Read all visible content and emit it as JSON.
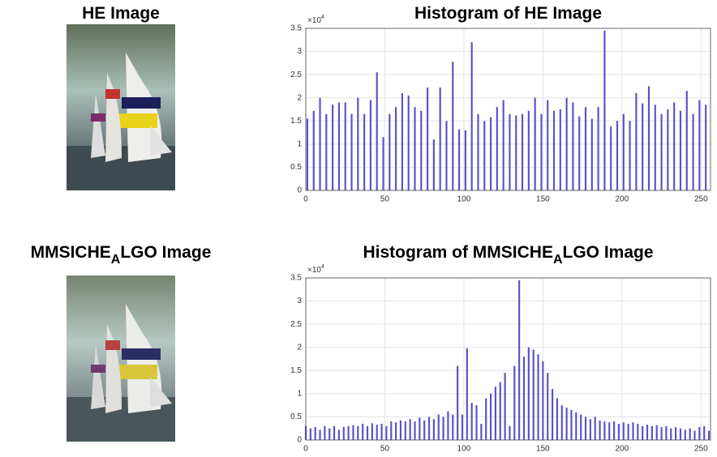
{
  "images": [
    {
      "label": "HE Image"
    },
    {
      "label": "MMSICHE",
      "label_sub": "A",
      "label_tail": "LGO Image"
    }
  ],
  "chart_data": [
    {
      "type": "bar",
      "title": "Histogram of HE Image",
      "y_scale_text": "×10",
      "y_scale_power": "4",
      "color": "#5b50c8",
      "grid": true,
      "xlim": [
        0,
        256
      ],
      "xticks": [
        0,
        50,
        100,
        150,
        200,
        250
      ],
      "ylim": [
        0,
        3.5
      ],
      "yticks": [
        0,
        0.5,
        1,
        1.5,
        2,
        2.5,
        3,
        3.5
      ],
      "x": [
        1,
        5,
        9,
        13,
        17,
        21,
        25,
        29,
        33,
        37,
        41,
        45,
        49,
        53,
        57,
        61,
        65,
        69,
        73,
        77,
        81,
        85,
        89,
        93,
        97,
        101,
        105,
        109,
        113,
        117,
        121,
        125,
        129,
        133,
        137,
        141,
        145,
        149,
        153,
        157,
        161,
        165,
        169,
        173,
        177,
        181,
        185,
        189,
        193,
        197,
        201,
        205,
        209,
        213,
        217,
        221,
        225,
        229,
        233,
        237,
        241,
        245,
        249,
        253
      ],
      "values": [
        1.55,
        1.72,
        2.0,
        1.65,
        1.85,
        1.9,
        1.9,
        1.65,
        2.0,
        1.65,
        1.95,
        2.55,
        1.15,
        1.65,
        1.8,
        2.1,
        2.05,
        1.8,
        1.72,
        2.22,
        1.1,
        2.22,
        1.5,
        2.78,
        1.32,
        1.3,
        3.2,
        1.65,
        1.5,
        1.58,
        1.8,
        1.95,
        1.65,
        1.62,
        1.65,
        1.72,
        2.0,
        1.65,
        1.95,
        1.72,
        1.75,
        2.0,
        1.9,
        1.6,
        1.8,
        1.55,
        1.8,
        3.45,
        1.38,
        1.5,
        1.65,
        1.5,
        2.1,
        1.88,
        2.25,
        1.85,
        1.65,
        1.75,
        1.9,
        1.72,
        2.15,
        1.65,
        1.95,
        1.85
      ]
    },
    {
      "type": "bar",
      "title": "Histogram of MMSICHE",
      "title_sub": "A",
      "title_tail": "LGO Image",
      "y_scale_text": "×10",
      "y_scale_power": "4",
      "color": "#5b50c8",
      "grid": true,
      "xlim": [
        0,
        256
      ],
      "xticks": [
        0,
        50,
        100,
        150,
        200,
        250
      ],
      "ylim": [
        0,
        3.5
      ],
      "yticks": [
        0,
        0.5,
        1,
        1.5,
        2,
        2.5,
        3,
        3.5
      ],
      "x": [
        0,
        3,
        6,
        9,
        12,
        15,
        18,
        21,
        24,
        27,
        30,
        33,
        36,
        39,
        42,
        45,
        48,
        51,
        54,
        57,
        60,
        63,
        66,
        69,
        72,
        75,
        78,
        81,
        84,
        87,
        90,
        93,
        96,
        99,
        102,
        105,
        108,
        111,
        114,
        117,
        120,
        123,
        126,
        129,
        132,
        135,
        138,
        141,
        144,
        147,
        150,
        153,
        156,
        159,
        162,
        165,
        168,
        171,
        174,
        177,
        180,
        183,
        186,
        189,
        192,
        195,
        198,
        201,
        204,
        207,
        210,
        213,
        216,
        219,
        222,
        225,
        228,
        231,
        234,
        237,
        240,
        243,
        246,
        249,
        252,
        255
      ],
      "values": [
        0.3,
        0.25,
        0.28,
        0.22,
        0.3,
        0.25,
        0.3,
        0.22,
        0.28,
        0.3,
        0.32,
        0.3,
        0.35,
        0.3,
        0.36,
        0.33,
        0.35,
        0.3,
        0.4,
        0.38,
        0.42,
        0.4,
        0.45,
        0.4,
        0.48,
        0.42,
        0.5,
        0.45,
        0.55,
        0.5,
        0.62,
        0.55,
        1.6,
        0.55,
        1.98,
        0.8,
        0.75,
        0.35,
        0.9,
        1.0,
        1.15,
        1.25,
        1.45,
        0.3,
        1.6,
        3.45,
        1.8,
        2.0,
        1.95,
        1.85,
        1.7,
        1.45,
        1.1,
        0.9,
        0.75,
        0.7,
        0.65,
        0.6,
        0.55,
        0.5,
        0.45,
        0.5,
        0.42,
        0.4,
        0.38,
        0.4,
        0.35,
        0.38,
        0.35,
        0.38,
        0.35,
        0.3,
        0.33,
        0.3,
        0.32,
        0.28,
        0.3,
        0.25,
        0.28,
        0.25,
        0.22,
        0.25,
        0.2,
        0.28,
        0.3,
        0.2
      ]
    }
  ]
}
